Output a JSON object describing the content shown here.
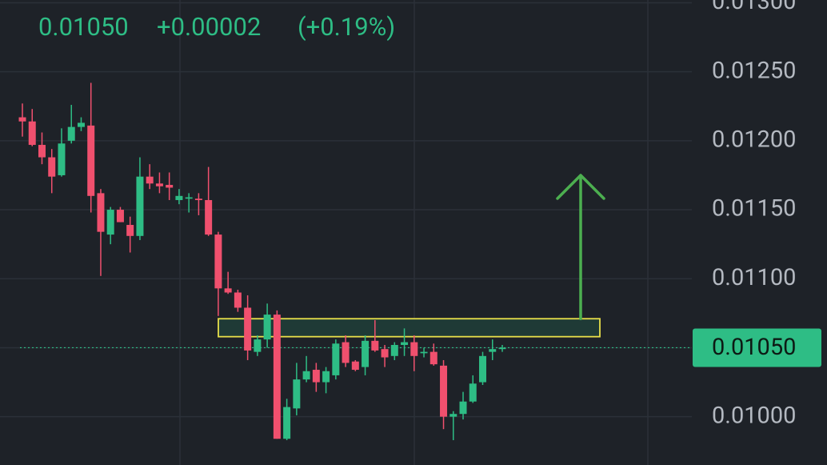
{
  "chart_data": {
    "type": "candlestick",
    "price": {
      "value": 0.0105,
      "label": "0.01050"
    },
    "change": {
      "value": 2e-05,
      "label": "+0.00002"
    },
    "change_percent": {
      "value": 0.19,
      "label": "(+0.19%)"
    },
    "up_color": "#2ebd85",
    "down_color": "#f0506e",
    "open": [
      0.01217,
      0.01214,
      0.01197,
      0.01188,
      0.01175,
      0.012,
      0.0121,
      0.01211,
      0.01162,
      0.01132,
      0.0115,
      0.01139,
      0.01131,
      0.01174,
      0.01169,
      0.01168,
      0.01157,
      0.01158,
      0.01158,
      0.01157,
      0.01132,
      0.01093,
      0.0109,
      0.01079,
      0.01047,
      0.01056,
      0.01074,
      0.00984,
      0.01006,
      0.01027,
      0.01034,
      0.01025,
      0.0103,
      0.01054,
      0.0104,
      0.01036,
      0.01055,
      0.01049,
      0.01044,
      0.01052,
      0.01054,
      0.01046,
      0.01047,
      0.01037,
      0.01,
      0.01002,
      0.01011,
      0.01025,
      0.01047,
      0.01049
    ],
    "high": [
      0.01227,
      0.01223,
      0.01206,
      0.01194,
      0.01209,
      0.01226,
      0.01217,
      0.01242,
      0.01165,
      0.01152,
      0.01152,
      0.01145,
      0.01188,
      0.01183,
      0.01177,
      0.01177,
      0.01165,
      0.01162,
      0.01162,
      0.01181,
      0.01134,
      0.01105,
      0.01092,
      0.01088,
      0.01059,
      0.01082,
      0.01077,
      0.01013,
      0.01039,
      0.01044,
      0.01039,
      0.01036,
      0.01056,
      0.01059,
      0.01041,
      0.01059,
      0.0107,
      0.01052,
      0.01054,
      0.01064,
      0.01059,
      0.0105,
      0.01053,
      0.01041,
      0.01004,
      0.01018,
      0.0103,
      0.01047,
      0.01056,
      0.01052
    ],
    "low": [
      0.01203,
      0.01196,
      0.01183,
      0.01162,
      0.01174,
      0.01198,
      0.01207,
      0.01148,
      0.01102,
      0.01125,
      0.01141,
      0.01119,
      0.01128,
      0.01165,
      0.01162,
      0.01157,
      0.01154,
      0.01148,
      0.01146,
      0.01131,
      0.01073,
      0.01089,
      0.01076,
      0.01041,
      0.01044,
      0.0105,
      0.00984,
      0.00983,
      0.01001,
      0.01025,
      0.01018,
      0.01017,
      0.01027,
      0.01036,
      0.01033,
      0.0103,
      0.01047,
      0.01036,
      0.01041,
      0.01044,
      0.01033,
      0.01043,
      0.01037,
      0.00991,
      0.00983,
      0.00998,
      0.0101,
      0.01023,
      0.01041,
      0.01047
    ],
    "close": [
      0.01214,
      0.01197,
      0.01188,
      0.01174,
      0.01198,
      0.0121,
      0.01213,
      0.0116,
      0.01134,
      0.0115,
      0.01141,
      0.01131,
      0.01174,
      0.01169,
      0.01167,
      0.01166,
      0.0116,
      0.01159,
      0.01157,
      0.01132,
      0.01093,
      0.0109,
      0.01079,
      0.01048,
      0.01056,
      0.01074,
      0.00984,
      0.01007,
      0.01027,
      0.01033,
      0.01025,
      0.01033,
      0.01053,
      0.01039,
      0.01034,
      0.01055,
      0.01048,
      0.01043,
      0.01052,
      0.01054,
      0.01044,
      0.01047,
      0.01038,
      0.01,
      0.01002,
      0.01011,
      0.01024,
      0.01044,
      0.01049,
      0.0105
    ],
    "ylim": [
      0.00965,
      0.01302
    ],
    "yticks": [
      {
        "value": 0.013,
        "label": "0.01300"
      },
      {
        "value": 0.0125,
        "label": "0.01250"
      },
      {
        "value": 0.012,
        "label": "0.01200"
      },
      {
        "value": 0.0115,
        "label": "0.01150"
      },
      {
        "value": 0.011,
        "label": "0.01100"
      },
      {
        "value": 0.0105,
        "label": "0.01050"
      },
      {
        "value": 0.01,
        "label": "0.01000"
      }
    ],
    "grid": true,
    "zone": {
      "range": [
        0.01058,
        0.01071
      ],
      "color": "#e8e04a"
    },
    "arrow": {
      "range": [
        0.01071,
        0.01175
      ],
      "color": "#4caf50"
    }
  }
}
